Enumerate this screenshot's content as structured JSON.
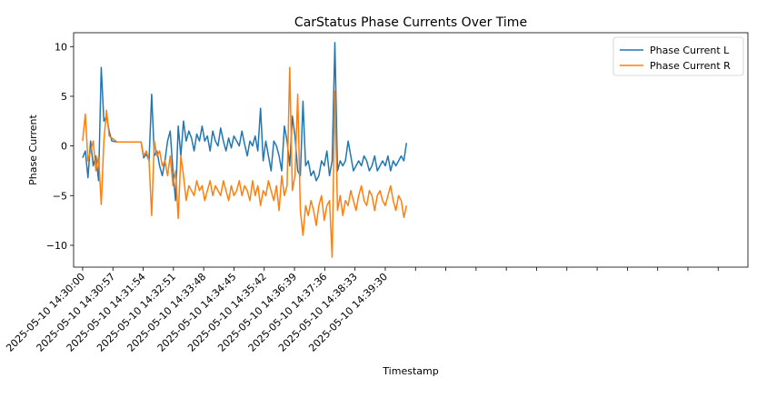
{
  "chart_data": {
    "type": "line",
    "title": "CarStatus Phase Currents Over Time",
    "xlabel": "Timestamp",
    "ylabel": "Phase Current",
    "ylim": [
      -12.2,
      11.4
    ],
    "yticks": [
      10,
      5,
      0,
      -5,
      -10
    ],
    "ytick_labels": [
      "10",
      "5",
      "0",
      "−5",
      "−10"
    ],
    "xlim": [
      "2025-05-10 14:29:43",
      "2025-05-10 14:50:53"
    ],
    "xtick_labels": [
      "2025-05-10 14:30:00",
      "2025-05-10 14:30:57",
      "2025-05-10 14:31:54",
      "2025-05-10 14:32:51",
      "2025-05-10 14:33:48",
      "2025-05-10 14:34:45",
      "2025-05-10 14:35:42",
      "2025-05-10 14:36:39",
      "2025-05-10 14:37:36",
      "2025-05-10 14:38:33",
      "2025-05-10 14:39:30"
    ],
    "unlabeled_tick_count": 11,
    "grid": false,
    "legend_position": "upper-right",
    "series": [
      {
        "name": "Phase Current L",
        "color": "#1f77b4",
        "x": [
          "2025-05-10 14:30:00",
          "2025-05-10 14:30:05",
          "2025-05-10 14:30:10",
          "2025-05-10 14:30:15",
          "2025-05-10 14:30:20",
          "2025-05-10 14:30:25",
          "2025-05-10 14:30:30",
          "2025-05-10 14:30:35",
          "2025-05-10 14:30:40",
          "2025-05-10 14:30:45",
          "2025-05-10 14:30:50",
          "2025-05-10 14:30:55",
          "2025-05-10 14:31:05",
          "2025-05-10 14:31:20",
          "2025-05-10 14:31:35",
          "2025-05-10 14:31:50",
          "2025-05-10 14:31:55",
          "2025-05-10 14:32:00",
          "2025-05-10 14:32:05",
          "2025-05-10 14:32:10",
          "2025-05-10 14:32:15",
          "2025-05-10 14:32:20",
          "2025-05-10 14:32:25",
          "2025-05-10 14:32:30",
          "2025-05-10 14:32:35",
          "2025-05-10 14:32:40",
          "2025-05-10 14:32:45",
          "2025-05-10 14:32:50",
          "2025-05-10 14:32:55",
          "2025-05-10 14:33:00",
          "2025-05-10 14:33:05",
          "2025-05-10 14:33:10",
          "2025-05-10 14:33:15",
          "2025-05-10 14:33:20",
          "2025-05-10 14:33:25",
          "2025-05-10 14:33:30",
          "2025-05-10 14:33:35",
          "2025-05-10 14:33:40",
          "2025-05-10 14:33:45",
          "2025-05-10 14:33:50",
          "2025-05-10 14:33:55",
          "2025-05-10 14:34:00",
          "2025-05-10 14:34:05",
          "2025-05-10 14:34:10",
          "2025-05-10 14:34:15",
          "2025-05-10 14:34:20",
          "2025-05-10 14:34:25",
          "2025-05-10 14:34:30",
          "2025-05-10 14:34:35",
          "2025-05-10 14:34:40",
          "2025-05-10 14:34:45",
          "2025-05-10 14:34:50",
          "2025-05-10 14:34:55",
          "2025-05-10 14:35:00",
          "2025-05-10 14:35:05",
          "2025-05-10 14:35:10",
          "2025-05-10 14:35:15",
          "2025-05-10 14:35:20",
          "2025-05-10 14:35:25",
          "2025-05-10 14:35:30",
          "2025-05-10 14:35:35",
          "2025-05-10 14:35:40",
          "2025-05-10 14:35:45",
          "2025-05-10 14:35:50",
          "2025-05-10 14:35:55",
          "2025-05-10 14:36:00",
          "2025-05-10 14:36:05",
          "2025-05-10 14:36:10",
          "2025-05-10 14:36:15",
          "2025-05-10 14:36:20",
          "2025-05-10 14:36:25",
          "2025-05-10 14:36:30",
          "2025-05-10 14:36:35",
          "2025-05-10 14:36:40",
          "2025-05-10 14:36:45",
          "2025-05-10 14:36:50",
          "2025-05-10 14:36:55",
          "2025-05-10 14:37:00",
          "2025-05-10 14:37:05",
          "2025-05-10 14:37:10",
          "2025-05-10 14:37:15",
          "2025-05-10 14:37:20",
          "2025-05-10 14:37:25",
          "2025-05-10 14:37:30",
          "2025-05-10 14:37:35",
          "2025-05-10 14:37:40",
          "2025-05-10 14:37:45",
          "2025-05-10 14:37:50",
          "2025-05-10 14:37:55",
          "2025-05-10 14:38:00",
          "2025-05-10 14:38:05",
          "2025-05-10 14:38:10",
          "2025-05-10 14:38:15",
          "2025-05-10 14:38:20",
          "2025-05-10 14:38:25",
          "2025-05-10 14:38:30",
          "2025-05-10 14:38:35",
          "2025-05-10 14:38:40",
          "2025-05-10 14:38:45",
          "2025-05-10 14:38:50",
          "2025-05-10 14:38:55",
          "2025-05-10 14:39:00",
          "2025-05-10 14:39:05",
          "2025-05-10 14:39:10",
          "2025-05-10 14:39:15",
          "2025-05-10 14:39:20",
          "2025-05-10 14:39:25",
          "2025-05-10 14:39:30",
          "2025-05-10 14:39:35",
          "2025-05-10 14:39:40",
          "2025-05-10 14:39:45",
          "2025-05-10 14:39:50",
          "2025-05-10 14:39:55",
          "2025-05-10 14:40:00",
          "2025-05-10 14:40:05",
          "2025-05-10 14:40:10"
        ],
        "y": [
          -1.2,
          -0.5,
          -3.2,
          0.5,
          -2.0,
          -1.0,
          -3.5,
          7.9,
          2.5,
          3.0,
          1.5,
          0.5,
          0.4,
          0.4,
          0.4,
          0.4,
          -1.2,
          -0.8,
          -1.5,
          5.2,
          -1.0,
          -0.5,
          -2.0,
          -3.0,
          -1.5,
          0.5,
          1.5,
          -2.5,
          -5.5,
          2.0,
          -1.0,
          2.5,
          0.5,
          1.5,
          0.8,
          -0.5,
          1.2,
          0.5,
          2.0,
          0.5,
          1.0,
          -0.5,
          1.5,
          0.5,
          0.0,
          1.8,
          0.5,
          -0.5,
          0.8,
          -0.2,
          1.0,
          0.5,
          0.0,
          1.5,
          0.2,
          -1.0,
          0.5,
          0.0,
          1.0,
          -0.5,
          3.8,
          -1.5,
          0.5,
          -1.0,
          -2.5,
          0.5,
          0.0,
          -1.0,
          -2.5,
          2.0,
          0.5,
          -2.0,
          3.0,
          1.0,
          -2.5,
          -3.0,
          4.5,
          -2.0,
          -1.5,
          -3.0,
          -2.5,
          -3.5,
          -3.0,
          -1.5,
          -2.0,
          -0.5,
          -3.0,
          -1.5,
          10.4,
          -2.5,
          -1.5,
          -2.0,
          -1.5,
          0.5,
          -1.0,
          -2.5,
          -2.0,
          -1.5,
          -2.0,
          -1.0,
          -1.5,
          -2.5,
          -2.0,
          -1.0,
          -2.5,
          -2.0,
          -1.5,
          -2.0,
          -1.0,
          -2.5,
          -1.5,
          -2.0,
          -1.5,
          -1.0,
          -1.5,
          0.3
        ]
      },
      {
        "name": "Phase Current R",
        "color": "#ff7f0e",
        "x": [
          "2025-05-10 14:30:00",
          "2025-05-10 14:30:05",
          "2025-05-10 14:30:10",
          "2025-05-10 14:30:15",
          "2025-05-10 14:30:20",
          "2025-05-10 14:30:25",
          "2025-05-10 14:30:30",
          "2025-05-10 14:30:35",
          "2025-05-10 14:30:40",
          "2025-05-10 14:30:45",
          "2025-05-10 14:30:50",
          "2025-05-10 14:30:55",
          "2025-05-10 14:31:05",
          "2025-05-10 14:31:20",
          "2025-05-10 14:31:35",
          "2025-05-10 14:31:50",
          "2025-05-10 14:31:55",
          "2025-05-10 14:32:00",
          "2025-05-10 14:32:05",
          "2025-05-10 14:32:10",
          "2025-05-10 14:32:15",
          "2025-05-10 14:32:20",
          "2025-05-10 14:32:25",
          "2025-05-10 14:32:30",
          "2025-05-10 14:32:35",
          "2025-05-10 14:32:40",
          "2025-05-10 14:32:45",
          "2025-05-10 14:32:50",
          "2025-05-10 14:32:55",
          "2025-05-10 14:33:00",
          "2025-05-10 14:33:05",
          "2025-05-10 14:33:10",
          "2025-05-10 14:33:15",
          "2025-05-10 14:33:20",
          "2025-05-10 14:33:25",
          "2025-05-10 14:33:30",
          "2025-05-10 14:33:35",
          "2025-05-10 14:33:40",
          "2025-05-10 14:33:45",
          "2025-05-10 14:33:50",
          "2025-05-10 14:33:55",
          "2025-05-10 14:34:00",
          "2025-05-10 14:34:05",
          "2025-05-10 14:34:10",
          "2025-05-10 14:34:15",
          "2025-05-10 14:34:20",
          "2025-05-10 14:34:25",
          "2025-05-10 14:34:30",
          "2025-05-10 14:34:35",
          "2025-05-10 14:34:40",
          "2025-05-10 14:34:45",
          "2025-05-10 14:34:50",
          "2025-05-10 14:34:55",
          "2025-05-10 14:35:00",
          "2025-05-10 14:35:05",
          "2025-05-10 14:35:10",
          "2025-05-10 14:35:15",
          "2025-05-10 14:35:20",
          "2025-05-10 14:35:25",
          "2025-05-10 14:35:30",
          "2025-05-10 14:35:35",
          "2025-05-10 14:35:40",
          "2025-05-10 14:35:45",
          "2025-05-10 14:35:50",
          "2025-05-10 14:35:55",
          "2025-05-10 14:36:00",
          "2025-05-10 14:36:05",
          "2025-05-10 14:36:10",
          "2025-05-10 14:36:15",
          "2025-05-10 14:36:20",
          "2025-05-10 14:36:25",
          "2025-05-10 14:36:30",
          "2025-05-10 14:36:35",
          "2025-05-10 14:36:40",
          "2025-05-10 14:36:45",
          "2025-05-10 14:36:50",
          "2025-05-10 14:36:55",
          "2025-05-10 14:37:00",
          "2025-05-10 14:37:05",
          "2025-05-10 14:37:10",
          "2025-05-10 14:37:15",
          "2025-05-10 14:37:20",
          "2025-05-10 14:37:25",
          "2025-05-10 14:37:30",
          "2025-05-10 14:37:35",
          "2025-05-10 14:37:40",
          "2025-05-10 14:37:45",
          "2025-05-10 14:37:50",
          "2025-05-10 14:37:55",
          "2025-05-10 14:38:00",
          "2025-05-10 14:38:05",
          "2025-05-10 14:38:10",
          "2025-05-10 14:38:15",
          "2025-05-10 14:38:20",
          "2025-05-10 14:38:25",
          "2025-05-10 14:38:30",
          "2025-05-10 14:38:35",
          "2025-05-10 14:38:40",
          "2025-05-10 14:38:45",
          "2025-05-10 14:38:50",
          "2025-05-10 14:38:55",
          "2025-05-10 14:39:00",
          "2025-05-10 14:39:05",
          "2025-05-10 14:39:10",
          "2025-05-10 14:39:15",
          "2025-05-10 14:39:20",
          "2025-05-10 14:39:25",
          "2025-05-10 14:39:30",
          "2025-05-10 14:39:35",
          "2025-05-10 14:39:40",
          "2025-05-10 14:39:45",
          "2025-05-10 14:39:50",
          "2025-05-10 14:39:55",
          "2025-05-10 14:40:00",
          "2025-05-10 14:40:05",
          "2025-05-10 14:40:10"
        ],
        "y": [
          0.5,
          3.2,
          -1.5,
          -0.5,
          0.5,
          -2.5,
          -1.0,
          -5.9,
          0.5,
          3.6,
          1.0,
          0.8,
          0.4,
          0.4,
          0.4,
          0.4,
          -1.0,
          -0.5,
          -1.5,
          -7.0,
          0.5,
          -1.0,
          -0.5,
          -2.0,
          -1.5,
          -3.0,
          -1.0,
          -4.0,
          -2.5,
          -7.3,
          -1.0,
          -3.0,
          -5.5,
          -4.0,
          -4.5,
          -5.0,
          -3.5,
          -4.5,
          -4.0,
          -5.5,
          -4.5,
          -3.5,
          -5.0,
          -4.0,
          -4.5,
          -5.0,
          -3.5,
          -4.5,
          -5.5,
          -4.0,
          -5.0,
          -4.5,
          -3.5,
          -5.0,
          -4.0,
          -4.5,
          -5.5,
          -3.5,
          -5.0,
          -4.0,
          -6.0,
          -4.5,
          -5.0,
          -3.5,
          -4.5,
          -5.5,
          -4.0,
          -6.5,
          -3.0,
          -5.0,
          -4.0,
          7.9,
          -4.5,
          -3.0,
          5.2,
          -6.5,
          -9.0,
          -6.0,
          -7.0,
          -5.5,
          -6.5,
          -8.0,
          -6.0,
          -5.0,
          -7.5,
          -6.0,
          -5.5,
          -11.2,
          5.5,
          -6.5,
          -5.0,
          -7.0,
          -5.5,
          -6.0,
          -4.5,
          -5.5,
          -6.5,
          -5.0,
          -4.0,
          -5.5,
          -6.0,
          -4.5,
          -5.0,
          -6.5,
          -5.0,
          -4.5,
          -5.5,
          -6.0,
          -5.0,
          -4.0,
          -5.5,
          -6.5,
          -5.0,
          -5.5,
          -7.2,
          -6.0
        ]
      }
    ]
  }
}
